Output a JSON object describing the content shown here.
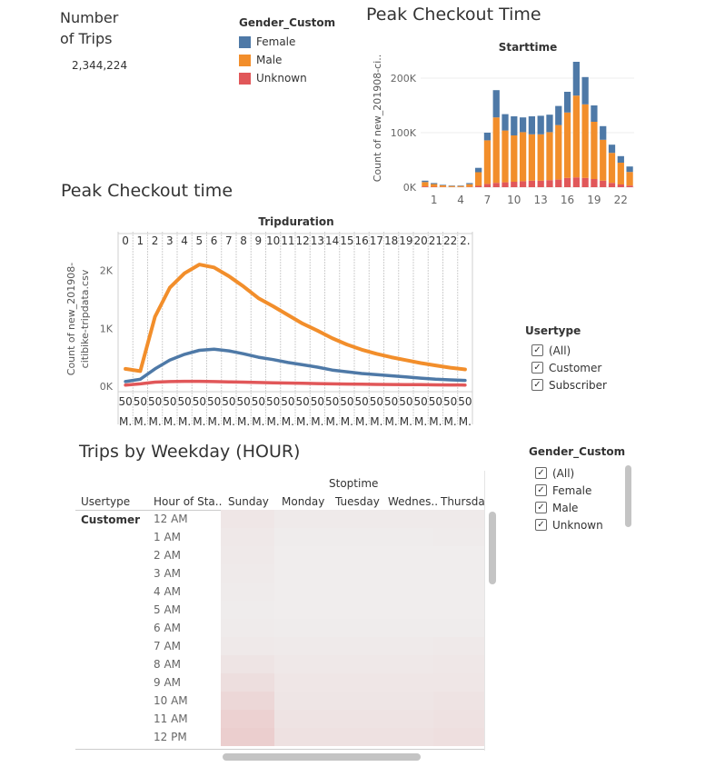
{
  "kpi": {
    "title_line1": "Number",
    "title_line2": "of Trips",
    "value": "2,344,224"
  },
  "gender_legend": {
    "title": "Gender_Custom",
    "items": [
      {
        "label": "Female",
        "color": "#4e79a7"
      },
      {
        "label": "Male",
        "color": "#f28e2b"
      },
      {
        "label": "Unknown",
        "color": "#e15759"
      }
    ]
  },
  "peak_checkout_time": {
    "title": "Peak Checkout Time",
    "chart_data": {
      "type": "bar",
      "title": "Starttime",
      "ylabel": "Count of new_201908-ci..",
      "ylim": [
        0,
        240000
      ],
      "y_ticks": [
        "0K",
        "100K",
        "200K"
      ],
      "x_ticks": [
        "1",
        "4",
        "7",
        "10",
        "13",
        "16",
        "19",
        "22"
      ],
      "categories": [
        "0",
        "1",
        "2",
        "3",
        "4",
        "5",
        "6",
        "7",
        "8",
        "9",
        "10",
        "11",
        "12",
        "13",
        "14",
        "15",
        "16",
        "17",
        "18",
        "19",
        "20",
        "21",
        "22",
        "23"
      ],
      "series": [
        {
          "name": "Unknown",
          "values": [
            1500,
            800,
            500,
            300,
            300,
            600,
            2500,
            6000,
            8000,
            9000,
            10000,
            11000,
            12000,
            12000,
            13000,
            14000,
            17000,
            18000,
            17000,
            15000,
            12000,
            8000,
            5000,
            3000
          ]
        },
        {
          "name": "Male",
          "values": [
            8000,
            5000,
            3000,
            2000,
            2000,
            5000,
            25000,
            80000,
            120000,
            95000,
            85000,
            90000,
            85000,
            85000,
            88000,
            100000,
            120000,
            150000,
            135000,
            105000,
            75000,
            55000,
            40000,
            25000
          ]
        },
        {
          "name": "Female",
          "values": [
            2500,
            1800,
            1000,
            800,
            800,
            2000,
            8000,
            14000,
            50000,
            30000,
            35000,
            27000,
            33000,
            34000,
            32000,
            35000,
            38000,
            62000,
            50000,
            30000,
            25000,
            15000,
            12000,
            10000
          ]
        }
      ]
    }
  },
  "peak_checkout_time2": {
    "title": "Peak Checkout time",
    "chart_data": {
      "type": "line",
      "title": "Tripduration",
      "ylabel_line1": "Count of new_201908-",
      "ylabel_line2": "citibike-tripdata.csv",
      "ylim": [
        0,
        2400
      ],
      "y_ticks": [
        "0K",
        "1K",
        "2K"
      ],
      "panels": [
        "0",
        "1",
        "2",
        "3",
        "4",
        "5",
        "6",
        "7",
        "8",
        "9",
        "10",
        "11",
        "12",
        "13",
        "14",
        "15",
        "16",
        "17",
        "18",
        "19",
        "20",
        "21",
        "22",
        "2."
      ],
      "panel_footer_line1": "50",
      "panel_footer_line2": "M.",
      "series": [
        {
          "name": "Male",
          "values": [
            300,
            260,
            1200,
            1700,
            1950,
            2100,
            2050,
            1900,
            1720,
            1520,
            1380,
            1230,
            1080,
            960,
            830,
            720,
            630,
            560,
            500,
            450,
            400,
            360,
            320,
            290
          ]
        },
        {
          "name": "Female",
          "values": [
            80,
            120,
            300,
            450,
            550,
            620,
            640,
            610,
            560,
            500,
            460,
            410,
            370,
            330,
            280,
            250,
            220,
            200,
            180,
            160,
            140,
            120,
            110,
            100
          ]
        },
        {
          "name": "Unknown",
          "values": [
            20,
            40,
            70,
            80,
            85,
            85,
            80,
            75,
            70,
            65,
            60,
            55,
            50,
            45,
            40,
            38,
            35,
            32,
            30,
            28,
            26,
            24,
            22,
            20
          ]
        }
      ]
    }
  },
  "usertype_filter": {
    "title": "Usertype",
    "items": [
      "(All)",
      "Customer",
      "Subscriber"
    ]
  },
  "gender_filter": {
    "title": "Gender_Custom",
    "items": [
      "(All)",
      "Female",
      "Male",
      "Unknown"
    ]
  },
  "trips_by_weekday": {
    "title": "Trips by Weekday (HOUR)",
    "column_group": "Stoptime",
    "usertype_header": "Usertype",
    "hour_header": "Hour of Sta..",
    "days": [
      "Sunday",
      "Monday",
      "Tuesday",
      "Wednes..",
      "Thursday"
    ],
    "usertype_value": "Customer",
    "hours": [
      "12 AM",
      "1 AM",
      "2 AM",
      "3 AM",
      "4 AM",
      "5 AM",
      "6 AM",
      "7 AM",
      "8 AM",
      "9 AM",
      "10 AM",
      "11 AM",
      "12 PM"
    ],
    "chart_data": {
      "type": "heatmap",
      "rows": [
        "12 AM",
        "1 AM",
        "2 AM",
        "3 AM",
        "4 AM",
        "5 AM",
        "6 AM",
        "7 AM",
        "8 AM",
        "9 AM",
        "10 AM",
        "11 AM",
        "12 PM"
      ],
      "columns": [
        "Sunday",
        "Monday",
        "Tuesday",
        "Wednes..",
        "Thursday"
      ],
      "values": [
        [
          0.14,
          0.08,
          0.08,
          0.08,
          0.09
        ],
        [
          0.12,
          0.06,
          0.06,
          0.06,
          0.07
        ],
        [
          0.1,
          0.05,
          0.05,
          0.05,
          0.05
        ],
        [
          0.08,
          0.05,
          0.05,
          0.05,
          0.05
        ],
        [
          0.07,
          0.05,
          0.05,
          0.05,
          0.05
        ],
        [
          0.06,
          0.05,
          0.05,
          0.05,
          0.05
        ],
        [
          0.07,
          0.06,
          0.06,
          0.06,
          0.06
        ],
        [
          0.1,
          0.09,
          0.09,
          0.09,
          0.1
        ],
        [
          0.17,
          0.12,
          0.12,
          0.12,
          0.13
        ],
        [
          0.26,
          0.14,
          0.14,
          0.14,
          0.15
        ],
        [
          0.36,
          0.16,
          0.16,
          0.16,
          0.18
        ],
        [
          0.44,
          0.19,
          0.19,
          0.19,
          0.21
        ],
        [
          0.48,
          0.22,
          0.22,
          0.22,
          0.24
        ]
      ]
    }
  }
}
